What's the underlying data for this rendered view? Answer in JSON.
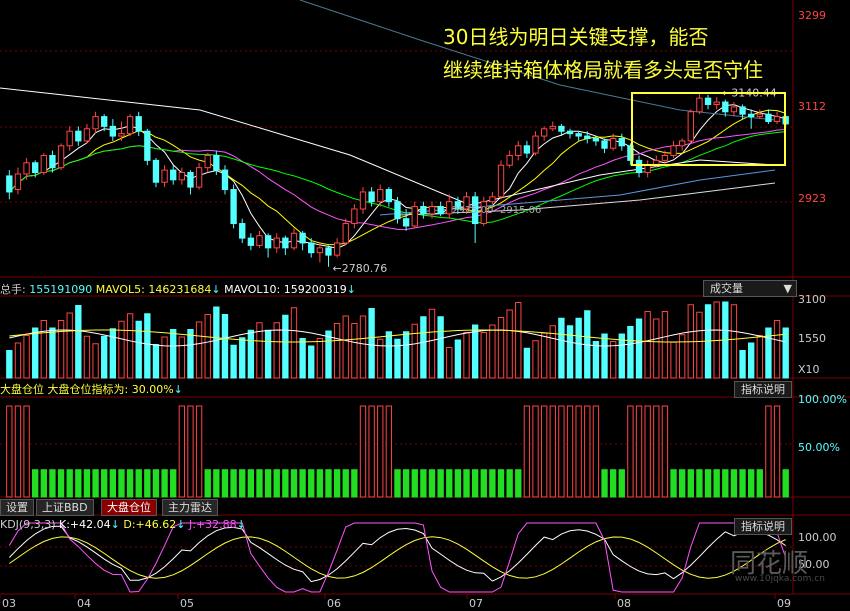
{
  "annotation": {
    "line1": "30日线为明日关键支撑，能否",
    "line2": "继续维持箱体格局就看多头是否守住"
  },
  "colors": {
    "up": "#ff4444",
    "down": "#54ffff",
    "ma5": "#ffffff",
    "ma10": "#ffff00",
    "ma20": "#ff55ff",
    "ma30": "#00ff00",
    "ma60": "#aaaaaa",
    "grid": "#7a0000"
  },
  "chart_data": [
    {
      "type": "candlestick",
      "name": "price",
      "y_ticks": [
        "3299",
        "3112",
        "2923"
      ],
      "annotations": {
        "high": "3140.44",
        "low": "2780.76",
        "mid1": "2915.00",
        "mid2": "2915.06"
      },
      "x_ticks": [
        "03",
        "04",
        "05",
        "06",
        "07",
        "08",
        "09"
      ],
      "candles": [
        [
          2968,
          2935,
          2980,
          2920
        ],
        [
          2940,
          2972,
          2985,
          2930
        ],
        [
          2972,
          2995,
          3005,
          2960
        ],
        [
          2995,
          2975,
          3000,
          2965
        ],
        [
          2975,
          3010,
          3015,
          2970
        ],
        [
          3010,
          2985,
          3020,
          2975
        ],
        [
          2985,
          3030,
          3035,
          2980
        ],
        [
          3030,
          3060,
          3070,
          3020
        ],
        [
          3060,
          3040,
          3070,
          3030
        ],
        [
          3040,
          3065,
          3075,
          3035
        ],
        [
          3065,
          3090,
          3100,
          3055
        ],
        [
          3090,
          3070,
          3095,
          3060
        ],
        [
          3070,
          3050,
          3085,
          3040
        ],
        [
          3050,
          3055,
          3080,
          3040
        ],
        [
          3055,
          3090,
          3095,
          3050
        ],
        [
          3090,
          3060,
          3100,
          3050
        ],
        [
          3060,
          3000,
          3065,
          2990
        ],
        [
          3000,
          2955,
          3005,
          2945
        ],
        [
          2955,
          2980,
          2990,
          2945
        ],
        [
          2980,
          2960,
          2990,
          2950
        ],
        [
          2960,
          2975,
          2985,
          2950
        ],
        [
          2975,
          2945,
          2980,
          2930
        ],
        [
          2945,
          2985,
          2995,
          2940
        ],
        [
          2985,
          3010,
          3015,
          2975
        ],
        [
          3010,
          2980,
          3020,
          2970
        ],
        [
          2980,
          2940,
          2990,
          2930
        ],
        [
          2940,
          2870,
          2950,
          2860
        ],
        [
          2870,
          2840,
          2880,
          2830
        ],
        [
          2840,
          2825,
          2850,
          2815
        ],
        [
          2825,
          2845,
          2855,
          2820
        ],
        [
          2845,
          2820,
          2850,
          2800
        ],
        [
          2820,
          2840,
          2850,
          2810
        ],
        [
          2840,
          2820,
          2845,
          2805
        ],
        [
          2820,
          2850,
          2860,
          2815
        ],
        [
          2850,
          2830,
          2855,
          2815
        ],
        [
          2830,
          2810,
          2840,
          2800
        ],
        [
          2810,
          2820,
          2830,
          2790
        ],
        [
          2820,
          2805,
          2825,
          2781
        ],
        [
          2805,
          2830,
          2840,
          2800
        ],
        [
          2830,
          2870,
          2880,
          2825
        ],
        [
          2870,
          2900,
          2910,
          2860
        ],
        [
          2900,
          2935,
          2945,
          2890
        ],
        [
          2935,
          2915,
          2945,
          2905
        ],
        [
          2915,
          2940,
          2950,
          2905
        ],
        [
          2940,
          2915,
          2945,
          2905
        ],
        [
          2915,
          2880,
          2925,
          2870
        ],
        [
          2880,
          2865,
          2900,
          2855
        ],
        [
          2865,
          2905,
          2915,
          2860
        ],
        [
          2905,
          2890,
          2915,
          2880
        ],
        [
          2890,
          2905,
          2915,
          2880
        ],
        [
          2905,
          2890,
          2915,
          2885
        ],
        [
          2890,
          2915,
          2930,
          2880
        ],
        [
          2915,
          2900,
          2925,
          2890
        ],
        [
          2900,
          2925,
          2935,
          2890
        ],
        [
          2925,
          2870,
          2935,
          2830
        ],
        [
          2870,
          2915,
          2925,
          2865
        ],
        [
          2915,
          2925,
          2935,
          2910
        ],
        [
          2925,
          2990,
          3000,
          2920
        ],
        [
          2990,
          3010,
          3020,
          2985
        ],
        [
          3010,
          3030,
          3040,
          3000
        ],
        [
          3030,
          3015,
          3040,
          3005
        ],
        [
          3015,
          3050,
          3060,
          3010
        ],
        [
          3050,
          3065,
          3070,
          3040
        ],
        [
          3065,
          3070,
          3080,
          3060
        ],
        [
          3070,
          3060,
          3075,
          3050
        ],
        [
          3060,
          3055,
          3065,
          3045
        ],
        [
          3055,
          3050,
          3060,
          3040
        ],
        [
          3050,
          3045,
          3060,
          3035
        ],
        [
          3045,
          3040,
          3050,
          3030
        ],
        [
          3040,
          3025,
          3045,
          3015
        ],
        [
          3025,
          3045,
          3055,
          3020
        ],
        [
          3045,
          3030,
          3055,
          3020
        ],
        [
          3030,
          3000,
          3035,
          2990
        ],
        [
          3000,
          2975,
          3010,
          2965
        ],
        [
          2975,
          2990,
          3000,
          2965
        ],
        [
          2990,
          3000,
          3010,
          2985
        ],
        [
          3000,
          3010,
          3020,
          2995
        ],
        [
          3010,
          3030,
          3040,
          3005
        ],
        [
          3030,
          3040,
          3045,
          3020
        ],
        [
          3040,
          3100,
          3105,
          3035
        ],
        [
          3100,
          3128,
          3140,
          3095
        ],
        [
          3128,
          3115,
          3135,
          3105
        ],
        [
          3115,
          3120,
          3130,
          3105
        ],
        [
          3120,
          3100,
          3125,
          3090
        ],
        [
          3100,
          3110,
          3120,
          3090
        ],
        [
          3110,
          3095,
          3115,
          3085
        ],
        [
          3095,
          3090,
          3105,
          3065
        ],
        [
          3090,
          3095,
          3105,
          3085
        ],
        [
          3095,
          3080,
          3105,
          3075
        ],
        [
          3080,
          3090,
          3100,
          3075
        ],
        [
          3090,
          3075,
          3095,
          3070
        ]
      ]
    },
    {
      "type": "bar",
      "name": "volume",
      "header": {
        "total_label": "总手:",
        "total": "155191090",
        "ma5_label": "MAVOL5:",
        "ma5": "146231684",
        "ma10_label": "MAVOL10:",
        "ma10": "159200319"
      },
      "y_ticks": [
        "3100",
        "1550"
      ],
      "unit": "X10",
      "selector": "成交量"
    },
    {
      "type": "bar",
      "name": "position",
      "header": {
        "title": "大盘仓位",
        "value_label": "大盘仓位指标为:",
        "value": "30.00%"
      },
      "y_ticks": [
        "100.00%",
        "50.00%"
      ],
      "values": [
        100,
        100,
        100,
        30,
        30,
        30,
        30,
        30,
        30,
        30,
        30,
        30,
        30,
        30,
        30,
        30,
        30,
        30,
        30,
        30,
        100,
        100,
        100,
        30,
        30,
        30,
        30,
        30,
        30,
        30,
        30,
        30,
        30,
        30,
        30,
        30,
        30,
        30,
        30,
        30,
        30,
        100,
        100,
        100,
        100,
        30,
        30,
        30,
        30,
        30,
        30,
        30,
        30,
        30,
        30,
        30,
        30,
        30,
        30,
        30,
        100,
        100,
        100,
        100,
        100,
        100,
        100,
        100,
        100,
        30,
        30,
        30,
        100,
        100,
        100,
        100,
        100,
        30,
        30,
        30,
        30,
        30,
        30,
        30,
        30,
        30,
        30,
        30,
        100,
        100,
        30
      ]
    },
    {
      "type": "line",
      "name": "KDJ",
      "header": {
        "name": "KDJ(9,3,3)",
        "k_label": "K:",
        "k": "+42.04",
        "d_label": "D:",
        "d": "+46.62",
        "j_label": "J:",
        "j": "+32.88"
      },
      "y_ticks": [
        "100.00",
        "50.00"
      ]
    }
  ],
  "buttons": {
    "explain1": "指标说明",
    "explain2": "指标说明"
  },
  "tabs": [
    "设置",
    "上证BBD",
    "大盘仓位",
    "主力雷达"
  ],
  "watermark": {
    "brand": "同花顺",
    "url": "www.10jqka.com.cn"
  }
}
